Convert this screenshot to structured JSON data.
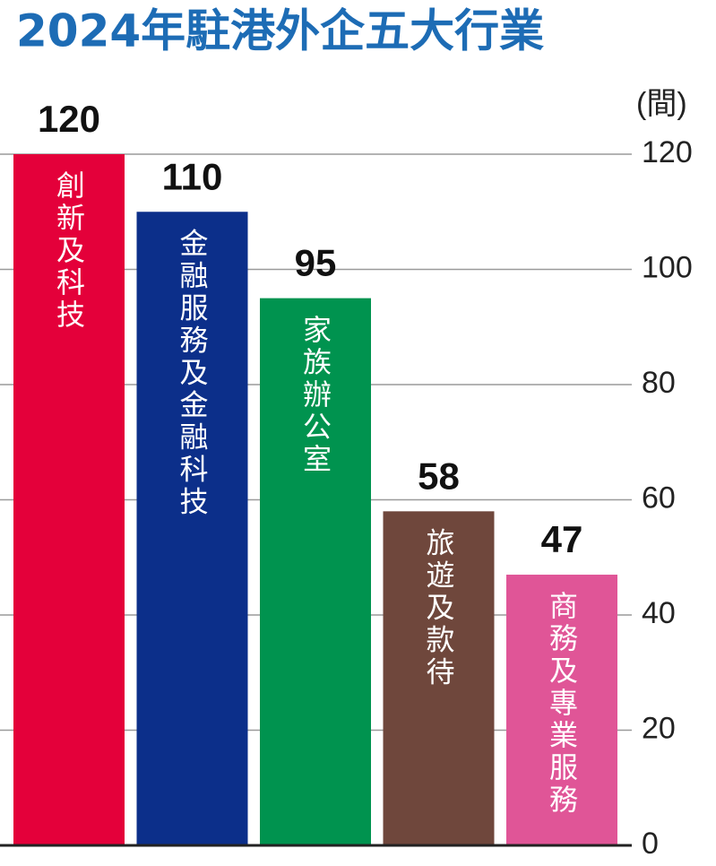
{
  "chart_data": {
    "type": "bar",
    "title": "2024年駐港外企五大行業",
    "y_unit": "(間)",
    "categories": [
      "創新及科技",
      "金融服務及金融科技",
      "家族辦公室",
      "旅遊及款待",
      "商務及專業服務"
    ],
    "values": [
      120,
      110,
      95,
      58,
      47
    ],
    "colors": [
      "#e4003a",
      "#0c2f8a",
      "#00934f",
      "#6f473c",
      "#e05597"
    ],
    "ylim": [
      0,
      120
    ],
    "yticks": [
      0,
      20,
      40,
      60,
      80,
      100,
      120
    ],
    "grid": true
  }
}
